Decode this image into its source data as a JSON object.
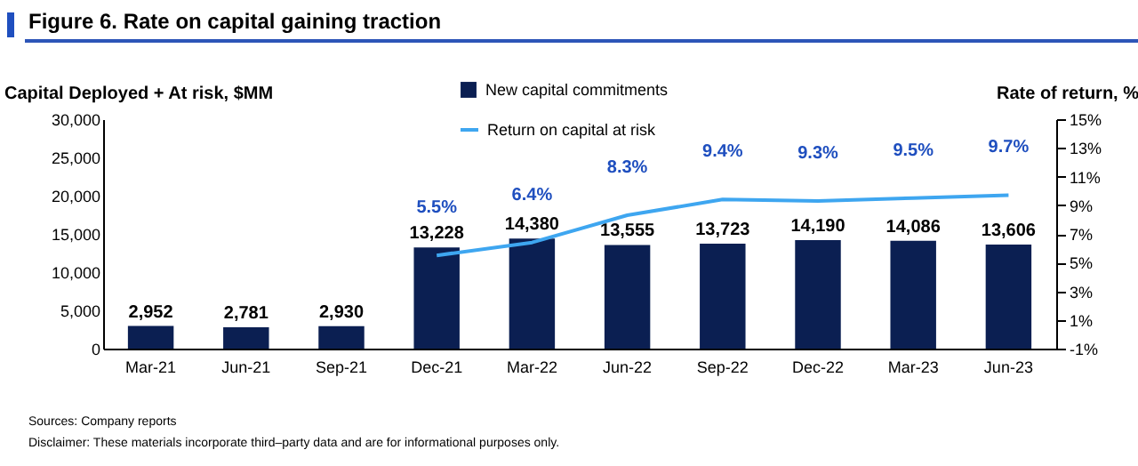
{
  "chart_data": {
    "type": "bar",
    "title": "Figure 6. Rate on capital gaining traction",
    "ylabel": "Capital Deployed + At risk, $MM",
    "y2label": "Rate of return, %",
    "categories": [
      "Mar-21",
      "Jun-21",
      "Sep-21",
      "Dec-21",
      "Mar-22",
      "Jun-22",
      "Sep-22",
      "Dec-22",
      "Mar-23",
      "Jun-23"
    ],
    "series": [
      {
        "name": "New capital commitments",
        "color": "#0b1f52",
        "values": [
          2952,
          2781,
          2930,
          13228,
          14380,
          13555,
          13723,
          14190,
          14086,
          13606
        ],
        "value_labels": [
          "2,952",
          "2,781",
          "2,930",
          "13,228",
          "14,380",
          "13,555",
          "13,723",
          "14,190",
          "14,086",
          "13,606"
        ]
      },
      {
        "name": "Return on capital at risk",
        "type": "line",
        "axis": "y2",
        "color": "#3ea6f0",
        "values": [
          null,
          null,
          null,
          5.5,
          6.4,
          8.3,
          9.4,
          9.3,
          9.5,
          9.7
        ],
        "value_labels": [
          null,
          null,
          null,
          "5.5%",
          "6.4%",
          "8.3%",
          "9.4%",
          "9.3%",
          "9.5%",
          "9.7%"
        ]
      }
    ],
    "ylim": [
      0,
      30000
    ],
    "yticks": [
      0,
      {
        "value": 5000,
        "label": "5,000"
      },
      {
        "value": 10000,
        "label": "10,000"
      },
      {
        "value": 15000,
        "label": "15,000"
      },
      {
        "value": 20000,
        "label": "20,000"
      },
      {
        "value": 25000,
        "label": "25,000"
      },
      {
        "value": 30000,
        "label": "30,000"
      }
    ],
    "y2lim": [
      -1,
      15
    ],
    "y2ticks": [
      {
        "value": -1,
        "label": "-1%"
      },
      {
        "value": 1,
        "label": "1%"
      },
      {
        "value": 3,
        "label": "3%"
      },
      {
        "value": 5,
        "label": "5%"
      },
      {
        "value": 7,
        "label": "7%"
      },
      {
        "value": 9,
        "label": "9%"
      },
      {
        "value": 11,
        "label": "11%"
      },
      {
        "value": 13,
        "label": "13%"
      },
      {
        "value": 15,
        "label": "15%"
      }
    ],
    "grid": false,
    "legend": "top",
    "annotations": [
      "Sources: Company reports",
      "Disclaimer: These materials incorporate third–party data and are for informational purposes only."
    ]
  }
}
